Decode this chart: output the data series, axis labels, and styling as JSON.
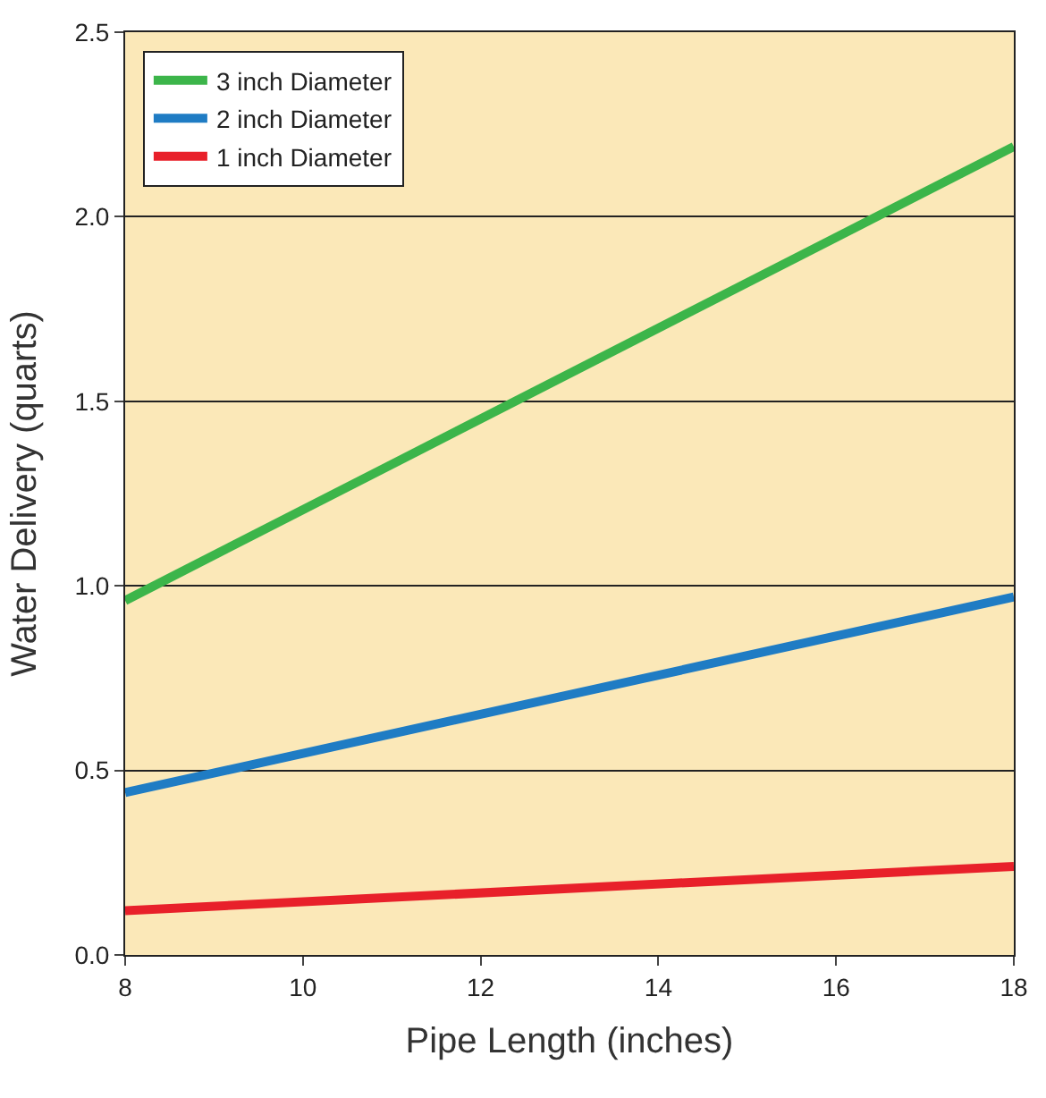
{
  "chart_data": {
    "type": "line",
    "xlabel": "Pipe Length (inches)",
    "ylabel": "Water Delivery (quarts)",
    "x": [
      8,
      18
    ],
    "series": [
      {
        "name": "3 inch Diameter",
        "color": "#3cb54a",
        "values": [
          0.96,
          2.19
        ]
      },
      {
        "name": "2 inch Diameter",
        "color": "#1f7cc4",
        "values": [
          0.44,
          0.97
        ]
      },
      {
        "name": "1 inch Diameter",
        "color": "#e8202a",
        "values": [
          0.12,
          0.24
        ]
      }
    ],
    "xlim": [
      8,
      18
    ],
    "xticks": [
      8,
      10,
      12,
      14,
      16,
      18
    ],
    "ylim": [
      0,
      2.5
    ],
    "yticks": [
      {
        "value": 0,
        "label": "0.0"
      },
      0.5,
      {
        "value": 1,
        "label": "1.0"
      },
      1.5,
      {
        "value": 2,
        "label": "2.0"
      },
      2.5
    ],
    "grid": "y",
    "legend": "top left",
    "marker": "none",
    "line_style": "solid"
  }
}
